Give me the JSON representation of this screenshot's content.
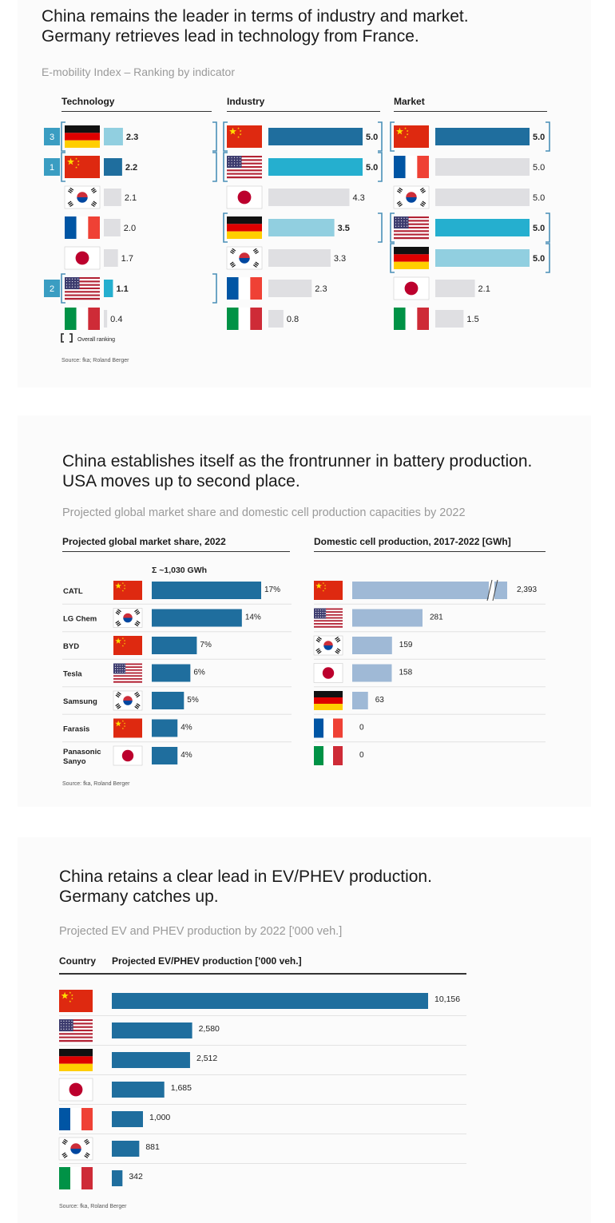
{
  "colors": {
    "dark_blue": "#1f6e9e",
    "cyan": "#25afcf",
    "light_blue": "#91cfe0",
    "gray": "#dfdfe2",
    "steel_blue": "#9fb9d6",
    "bracket": "#4a90b8",
    "rank_box": "#3a9dc2"
  },
  "section1": {
    "title_line1": "China remains the leader in terms of industry and market.",
    "title_line2": "Germany retrieves lead in technology from France.",
    "subtitle": "E-mobility Index – Ranking by indicator",
    "legend_text": "Overall ranking",
    "source": "Source: fka; Roland Berger"
  },
  "section2": {
    "title_line1": "China establishes itself as the frontrunner in battery production.",
    "title_line2": "USA moves up to second place.",
    "subtitle": "Projected global market share and domestic cell production capacities by 2022",
    "source": "Source: fka, Roland Berger"
  },
  "section3": {
    "title_line1": "China retains a clear lead in EV/PHEV production.",
    "title_line2": "Germany catches up.",
    "subtitle": "Projected EV and PHEV production by 2022 ['000 veh.]",
    "source": "Source: fka, Roland Berger"
  },
  "chart_data": [
    {
      "type": "bar",
      "title": "Technology",
      "ranks": {
        "DE": "3",
        "CN": "1",
        "US": "2"
      },
      "rows": [
        {
          "country": "DE",
          "value": 2.3,
          "label": "2.3",
          "color": "light_blue"
        },
        {
          "country": "CN",
          "value": 2.2,
          "label": "2.2",
          "color": "dark_blue"
        },
        {
          "country": "KR",
          "value": 2.1,
          "label": "2.1",
          "color": "gray"
        },
        {
          "country": "FR",
          "value": 2.0,
          "label": "2.0",
          "color": "gray"
        },
        {
          "country": "JP",
          "value": 1.7,
          "label": "1.7",
          "color": "gray"
        },
        {
          "country": "US",
          "value": 1.1,
          "label": "1.1",
          "color": "cyan"
        },
        {
          "country": "IT",
          "value": 0.4,
          "label": "0.4",
          "color": "gray"
        }
      ],
      "xlim": [
        0,
        5
      ]
    },
    {
      "type": "bar",
      "title": "Industry",
      "rows": [
        {
          "country": "CN",
          "value": 5.0,
          "label": "5.0",
          "color": "dark_blue"
        },
        {
          "country": "US",
          "value": 5.0,
          "label": "5.0",
          "color": "cyan"
        },
        {
          "country": "JP",
          "value": 4.3,
          "label": "4.3",
          "color": "gray"
        },
        {
          "country": "DE",
          "value": 3.5,
          "label": "3.5",
          "color": "light_blue"
        },
        {
          "country": "KR",
          "value": 3.3,
          "label": "3.3",
          "color": "gray"
        },
        {
          "country": "FR",
          "value": 2.3,
          "label": "2.3",
          "color": "gray"
        },
        {
          "country": "IT",
          "value": 0.8,
          "label": "0.8",
          "color": "gray"
        }
      ],
      "xlim": [
        0,
        5
      ]
    },
    {
      "type": "bar",
      "title": "Market",
      "rows": [
        {
          "country": "CN",
          "value": 5.0,
          "label": "5.0",
          "color": "dark_blue"
        },
        {
          "country": "FR",
          "value": 5.0,
          "label": "5.0",
          "color": "gray"
        },
        {
          "country": "KR",
          "value": 5.0,
          "label": "5.0",
          "color": "gray"
        },
        {
          "country": "US",
          "value": 5.0,
          "label": "5.0",
          "color": "cyan"
        },
        {
          "country": "DE",
          "value": 5.0,
          "label": "5.0",
          "color": "light_blue"
        },
        {
          "country": "JP",
          "value": 2.1,
          "label": "2.1",
          "color": "gray"
        },
        {
          "country": "IT",
          "value": 1.5,
          "label": "1.5",
          "color": "gray"
        }
      ],
      "xlim": [
        0,
        5
      ]
    },
    {
      "type": "bar",
      "title": "Projected global market share, 2022",
      "annotation": "Σ ~1,030 GWh",
      "rows": [
        {
          "company": "CATL",
          "country": "CN",
          "value": 17,
          "label": "17%"
        },
        {
          "company": "LG Chem",
          "country": "KR",
          "value": 14,
          "label": "14%"
        },
        {
          "company": "BYD",
          "country": "CN",
          "value": 7,
          "label": "7%"
        },
        {
          "company": "Tesla",
          "country": "US",
          "value": 6,
          "label": "6%"
        },
        {
          "company": "Samsung",
          "country": "KR",
          "value": 5,
          "label": "5%"
        },
        {
          "company": "Farasis",
          "country": "CN",
          "value": 4,
          "label": "4%"
        },
        {
          "company": "Panasonic Sanyo",
          "company_lines": [
            "Panasonic",
            "Sanyo"
          ],
          "country": "JP",
          "value": 4,
          "label": "4%"
        }
      ]
    },
    {
      "type": "bar",
      "title": "Domestic cell production, 2017-2022 [GWh]",
      "axis_break": true,
      "rows": [
        {
          "country": "CN",
          "value": 2393,
          "label": "2,393"
        },
        {
          "country": "US",
          "value": 281,
          "label": "281"
        },
        {
          "country": "KR",
          "value": 159,
          "label": "159"
        },
        {
          "country": "JP",
          "value": 158,
          "label": "158"
        },
        {
          "country": "DE",
          "value": 63,
          "label": "63"
        },
        {
          "country": "FR",
          "value": 0,
          "label": "0"
        },
        {
          "country": "IT",
          "value": 0,
          "label": "0"
        }
      ]
    },
    {
      "type": "bar",
      "title": "Projected EV/PHEV production ['000 veh.]",
      "category_header": "Country",
      "rows": [
        {
          "country": "CN",
          "value": 10156,
          "label": "10,156"
        },
        {
          "country": "US",
          "value": 2580,
          "label": "2,580"
        },
        {
          "country": "DE",
          "value": 2512,
          "label": "2,512"
        },
        {
          "country": "JP",
          "value": 1685,
          "label": "1,685"
        },
        {
          "country": "FR",
          "value": 1000,
          "label": "1,000"
        },
        {
          "country": "KR",
          "value": 881,
          "label": "881"
        },
        {
          "country": "IT",
          "value": 342,
          "label": "342"
        }
      ]
    }
  ]
}
